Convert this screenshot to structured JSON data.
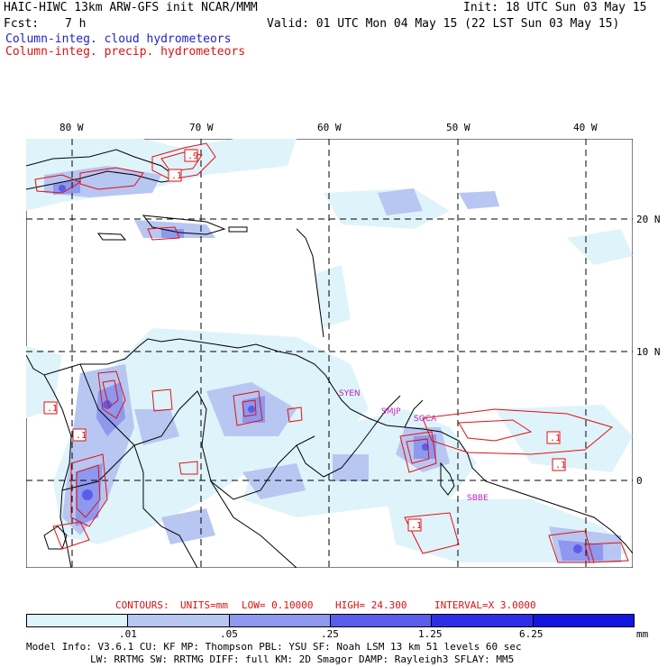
{
  "header": {
    "title_left": "HAIC-HIWC 13km ARW-GFS init   NCAR/MMM",
    "init": "Init: 18 UTC Sun 03 May 15",
    "fcst_label": "Fcst:",
    "fcst_value": "7 h",
    "valid": "Valid: 01 UTC Mon 04 May 15 (22 LST Sun 03 May 15)",
    "legend_cloud": "Column-integ. cloud hydrometeors",
    "legend_precip": "Column-integ. precip. hydrometeors"
  },
  "map": {
    "lon_labels": [
      "80 W",
      "70 W",
      "60 W",
      "50 W",
      "40 W"
    ],
    "lat_labels": [
      "20 N",
      "10 N",
      "0"
    ],
    "stations": [
      "SYEN",
      "SMJP",
      "SOCA",
      "SBBE"
    ],
    "contour_labels": [
      ".9",
      ".1",
      ".1",
      ".1",
      ".1",
      ".1",
      ".1"
    ]
  },
  "contours": {
    "label": "CONTOURS:",
    "units": "UNITS=mm",
    "low": "LOW= 0.10000",
    "high": "HIGH= 24.300",
    "interval": "INTERVAL=X  3.0000"
  },
  "colorbar": {
    "ticks": [
      ".01",
      ".05",
      ".25",
      "1.25",
      "6.25",
      "mm"
    ],
    "colors": [
      "#ffffff",
      "#dff3fa",
      "#b8c6f2",
      "#8e98ee",
      "#5c5cec",
      "#2d2de8",
      "#1515e0"
    ]
  },
  "model_info": {
    "line1": "Model Info: V3.6.1    CU: KF      MP: Thompson    PBL: YSU      SF: Noah LSM    13 km   51 levels   60 sec",
    "line2": "LW: RRTMG   SW: RRTMG  DIFF: full   KM: 2D Smagor DAMP: Rayleigh3  SFLAY: MM5"
  }
}
